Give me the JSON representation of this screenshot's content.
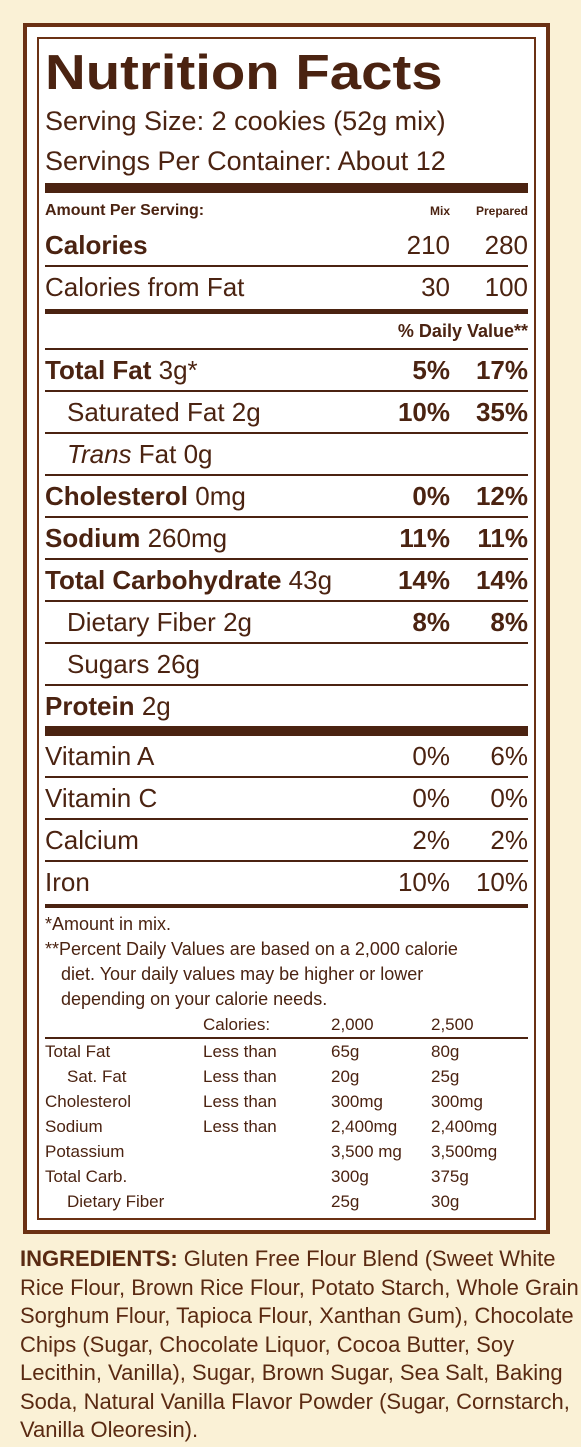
{
  "title": "Nutrition Facts",
  "serving_size": "Serving Size:  2 cookies (52g mix)",
  "servings_per_container": "Servings Per Container:  About 12",
  "amount_per_serving": "Amount Per Serving:",
  "col_mix": "Mix",
  "col_prepared": "Prepared",
  "calories": {
    "label": "Calories",
    "mix": "210",
    "prepared": "280"
  },
  "calories_fat": {
    "label": "Calories from Fat",
    "mix": "30",
    "prepared": "100"
  },
  "daily_value_head": "% Daily Value**",
  "nutrients": [
    {
      "name": "Total Fat",
      "amount": "3g*",
      "mix": "5%",
      "prepared": "17%"
    },
    {
      "name": "Saturated Fat",
      "amount": "2g",
      "mix": "10%",
      "prepared": "35%"
    },
    {
      "name_italic": "Trans",
      "name": "Fat",
      "amount": "0g",
      "mix": "",
      "prepared": ""
    },
    {
      "name": "Cholesterol",
      "amount": "0mg",
      "mix": "0%",
      "prepared": "12%"
    },
    {
      "name": "Sodium",
      "amount": "260mg",
      "mix": "11%",
      "prepared": "11%"
    },
    {
      "name": "Total Carbohydrate",
      "amount": "43g",
      "mix": "14%",
      "prepared": "14%"
    },
    {
      "name": "Dietary Fiber",
      "amount": "2g",
      "mix": "8%",
      "prepared": "8%"
    },
    {
      "name": "Sugars",
      "amount": "26g",
      "mix": "",
      "prepared": ""
    },
    {
      "name": "Protein",
      "amount": "2g",
      "mix": "",
      "prepared": ""
    }
  ],
  "vitamins": [
    {
      "name": "Vitamin A",
      "mix": "0%",
      "prepared": "6%"
    },
    {
      "name": "Vitamin C",
      "mix": "0%",
      "prepared": "0%"
    },
    {
      "name": "Calcium",
      "mix": "2%",
      "prepared": "2%"
    },
    {
      "name": "Iron",
      "mix": "10%",
      "prepared": "10%"
    }
  ],
  "footnote_1": "*Amount in mix.",
  "footnote_2_line1": "**Percent Daily Values are based on a 2,000 calorie",
  "footnote_2_line2": "diet. Your daily values may be higher or lower",
  "footnote_2_line3": "depending on your calorie needs.",
  "reference": {
    "header": [
      "",
      "Calories:",
      "2,000",
      "2,500"
    ],
    "rows": [
      [
        "Total Fat",
        "Less than",
        "65g",
        "80g"
      ],
      [
        "Sat. Fat",
        "Less than",
        "20g",
        "25g"
      ],
      [
        "Cholesterol",
        "Less than",
        "300mg",
        "300mg"
      ],
      [
        "Sodium",
        "Less than",
        "2,400mg",
        "2,400mg"
      ],
      [
        "Potassium",
        "",
        "3,500 mg",
        "3,500mg"
      ],
      [
        "Total Carb.",
        "",
        "300g",
        "375g"
      ],
      [
        "Dietary Fiber",
        "",
        "25g",
        "30g"
      ]
    ]
  },
  "ingredients_label": "INGREDIENTS:",
  "ingredients_text": " Gluten Free Flour Blend (Sweet White Rice Flour, Brown Rice Flour, Potato Starch, Whole Grain Sorghum Flour, Tapioca Flour, Xanthan Gum), Chocolate Chips (Sugar, Chocolate Liquor, Cocoa Butter, Soy Lecithin, Vanilla), Sugar, Brown Sugar, Sea Salt, Baking Soda, Natural Vanilla Flavor Powder (Sugar, Cornstarch, Vanilla Oleoresin).",
  "colors": {
    "brand_brown": "#4b2311",
    "border_brown": "#6b3114",
    "background": "#faf1d6"
  }
}
